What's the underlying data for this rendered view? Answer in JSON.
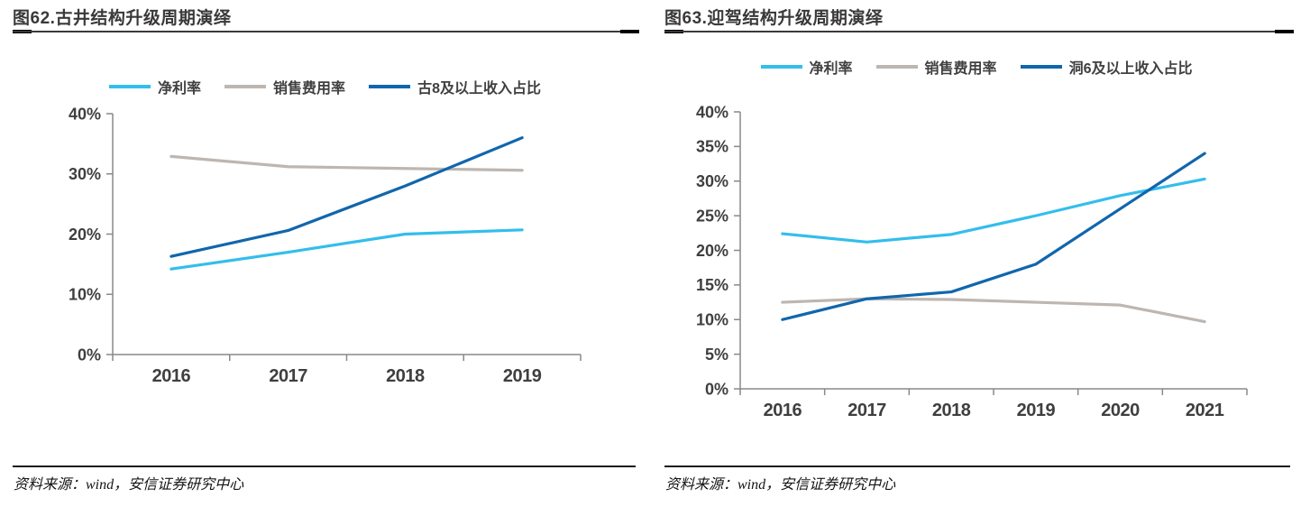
{
  "chart_data": [
    {
      "type": "line",
      "title": "图62.古井结构升级周期演绎",
      "source": "资料来源：wind，安信证券研究中心",
      "categories": [
        "2016",
        "2017",
        "2018",
        "2019"
      ],
      "series": [
        {
          "name": "净利率",
          "color": "#33beec",
          "values": [
            14.2,
            17.0,
            20.0,
            20.7
          ]
        },
        {
          "name": "销售费用率",
          "color": "#bdb6b1",
          "values": [
            32.9,
            31.2,
            30.9,
            30.6
          ]
        },
        {
          "name": "古8及以上收入占比",
          "color": "#1066ad",
          "values": [
            16.3,
            20.6,
            28.0,
            36.0
          ]
        }
      ],
      "ylim": [
        0,
        40
      ],
      "ytick_step": 10,
      "ytick_suffix": "%",
      "grid": false,
      "legend_position": "top"
    },
    {
      "type": "line",
      "title": "图63.迎驾结构升级周期演绎",
      "source": "资料来源：wind，安信证券研究中心",
      "categories": [
        "2016",
        "2017",
        "2018",
        "2019",
        "2020",
        "2021"
      ],
      "series": [
        {
          "name": "净利率",
          "color": "#33beec",
          "values": [
            22.4,
            21.2,
            22.3,
            25.0,
            27.9,
            30.3
          ]
        },
        {
          "name": "销售费用率",
          "color": "#bdb6b1",
          "values": [
            12.5,
            13.0,
            12.9,
            12.5,
            12.1,
            9.7
          ]
        },
        {
          "name": "洞6及以上收入占比",
          "color": "#1066ad",
          "values": [
            10.0,
            13.0,
            14.0,
            18.0,
            26.0,
            34.0
          ]
        }
      ],
      "ylim": [
        0,
        40
      ],
      "ytick_step": 5,
      "ytick_suffix": "%",
      "grid": false,
      "legend_position": "top"
    }
  ],
  "style": {
    "axis_color": "#898989",
    "tick_label_color": "#3f3f3f",
    "title_color": "#3b3838"
  }
}
